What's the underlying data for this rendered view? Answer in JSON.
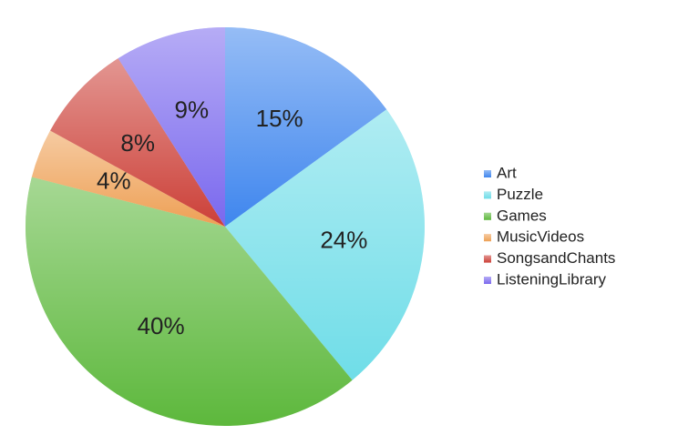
{
  "chart_data": {
    "type": "pie",
    "categories": [
      "Art",
      "Puzzle",
      "Games",
      "MusicVideos",
      "SongsandChants",
      "ListeningLibrary"
    ],
    "values": [
      15,
      24,
      40,
      4,
      8,
      9
    ],
    "value_labels": [
      "15%",
      "24%",
      "40%",
      "4%",
      "8%",
      "9%"
    ],
    "colors": [
      "#3f86ee",
      "#6fdde8",
      "#5db83c",
      "#eea055",
      "#cc4038",
      "#7a68ee"
    ],
    "legend": "right"
  }
}
